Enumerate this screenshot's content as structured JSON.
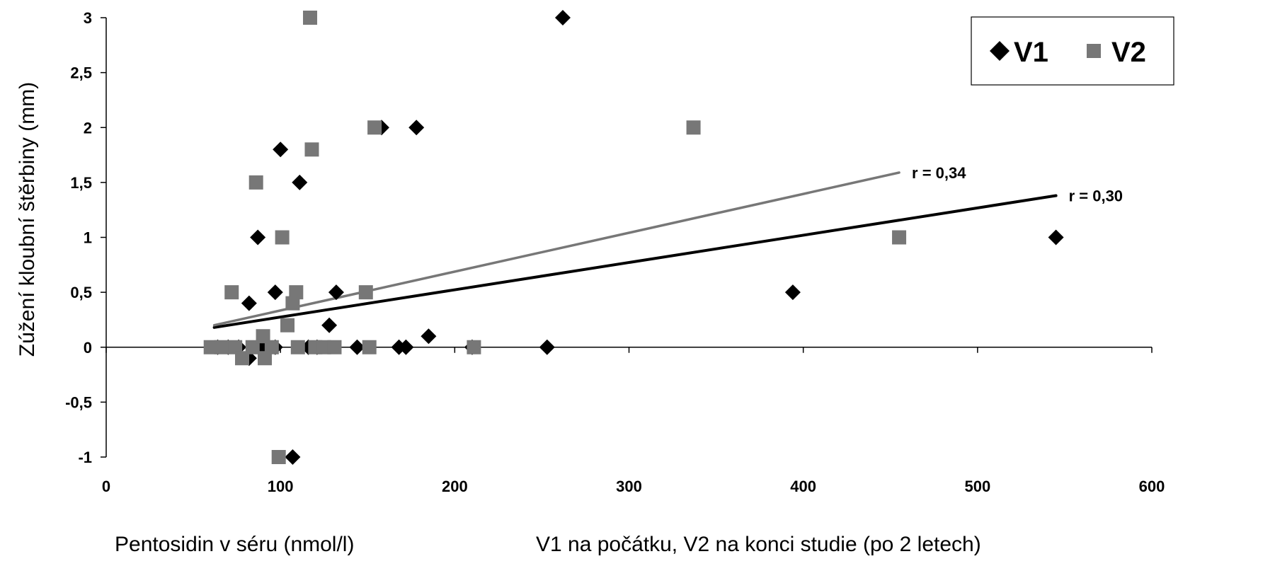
{
  "chart_data": {
    "type": "scatter",
    "ylabel": "Zúžení kloubní štěrbiny (mm)",
    "xlabel": "Pentosidin v séru (nmol/l)",
    "caption": "V1  na počátku,  V2 na konci studie (po 2 letech)",
    "xlim": [
      0,
      600
    ],
    "ylim": [
      -1,
      3
    ],
    "x_ticks": [
      "0",
      "100",
      "200",
      "300",
      "400",
      "500",
      "600"
    ],
    "y_ticks": [
      "3",
      "2,5",
      "2",
      "1,5",
      "1",
      "0,5",
      "0",
      "-0,5",
      "-1"
    ],
    "legend_position": "top-right",
    "series": [
      {
        "name": "V1",
        "marker": "diamond",
        "color": "#000000",
        "points": [
          [
            64,
            0
          ],
          [
            70,
            0
          ],
          [
            76,
            0
          ],
          [
            82,
            -0.1
          ],
          [
            88,
            0
          ],
          [
            92,
            0
          ],
          [
            97,
            0
          ],
          [
            82,
            0.4
          ],
          [
            87,
            1.0
          ],
          [
            97,
            0.5
          ],
          [
            100,
            1.8
          ],
          [
            107,
            -1.0
          ],
          [
            111,
            1.5
          ],
          [
            116,
            0
          ],
          [
            121,
            0
          ],
          [
            128,
            0.2
          ],
          [
            132,
            0.5
          ],
          [
            144,
            0
          ],
          [
            158,
            2.0
          ],
          [
            168,
            0
          ],
          [
            172,
            0
          ],
          [
            178,
            2.0
          ],
          [
            185,
            0.1
          ],
          [
            210,
            0
          ],
          [
            253,
            0
          ],
          [
            262,
            3.0
          ],
          [
            394,
            0.5
          ],
          [
            545,
            1.0
          ]
        ],
        "trend": {
          "x": [
            62,
            545
          ],
          "y": [
            0.18,
            1.38
          ],
          "label": "r = 0,30"
        }
      },
      {
        "name": "V2",
        "marker": "square",
        "color": "#777777",
        "points": [
          [
            60,
            0
          ],
          [
            66,
            0
          ],
          [
            72,
            0.5
          ],
          [
            74,
            0
          ],
          [
            78,
            -0.1
          ],
          [
            84,
            0
          ],
          [
            86,
            1.5
          ],
          [
            90,
            0.1
          ],
          [
            91,
            -0.1
          ],
          [
            95,
            0
          ],
          [
            99,
            -1.0
          ],
          [
            101,
            1.0
          ],
          [
            104,
            0.2
          ],
          [
            107,
            0.4
          ],
          [
            109,
            0.5
          ],
          [
            110,
            0
          ],
          [
            117,
            3.0
          ],
          [
            118,
            1.8
          ],
          [
            120,
            0
          ],
          [
            125,
            0
          ],
          [
            131,
            0
          ],
          [
            149,
            0.5
          ],
          [
            151,
            0
          ],
          [
            154,
            2.0
          ],
          [
            211,
            0
          ],
          [
            337,
            2.0
          ],
          [
            455,
            1.0
          ]
        ],
        "trend": {
          "x": [
            62,
            455
          ],
          "y": [
            0.2,
            1.59
          ],
          "label": "r = 0,34"
        }
      }
    ]
  }
}
